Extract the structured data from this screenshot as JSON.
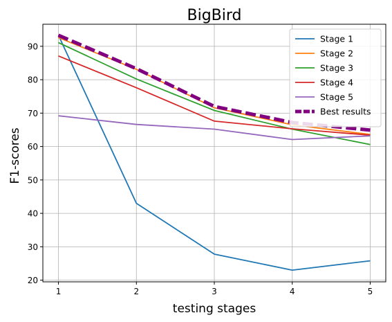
{
  "chart_data": {
    "type": "line",
    "title": "BigBird",
    "xlabel": "testing stages",
    "ylabel": "F1-scores",
    "x": [
      1,
      2,
      3,
      4,
      5
    ],
    "xlim": [
      0.8,
      5.2
    ],
    "ylim": [
      19.5,
      96.6
    ],
    "x_ticks": [
      1,
      2,
      3,
      4,
      5
    ],
    "y_ticks": [
      20,
      30,
      40,
      50,
      60,
      70,
      80,
      90
    ],
    "grid": true,
    "legend_position": "top-right",
    "series": [
      {
        "name": "Stage 1",
        "color": "#1f77b4",
        "style": "solid",
        "values": [
          93.3,
          43.0,
          27.8,
          23.0,
          25.8
        ]
      },
      {
        "name": "Stage 2",
        "color": "#ff7f0e",
        "style": "solid",
        "values": [
          92.6,
          83.1,
          71.6,
          66.5,
          63.6
        ]
      },
      {
        "name": "Stage 3",
        "color": "#2ca02c",
        "style": "solid",
        "values": [
          91.1,
          80.2,
          70.8,
          65.2,
          60.6
        ]
      },
      {
        "name": "Stage 4",
        "color": "#d62728",
        "style": "solid",
        "values": [
          87.1,
          77.6,
          67.6,
          65.3,
          63.4
        ]
      },
      {
        "name": "Stage 5",
        "color": "#9467bd",
        "style": "solid",
        "values": [
          69.2,
          66.6,
          65.2,
          62.1,
          63.2
        ]
      },
      {
        "name": "Best results",
        "color": "#800080",
        "style": "dashed",
        "values": [
          93.3,
          83.3,
          72.0,
          67.2,
          64.9
        ]
      }
    ]
  }
}
